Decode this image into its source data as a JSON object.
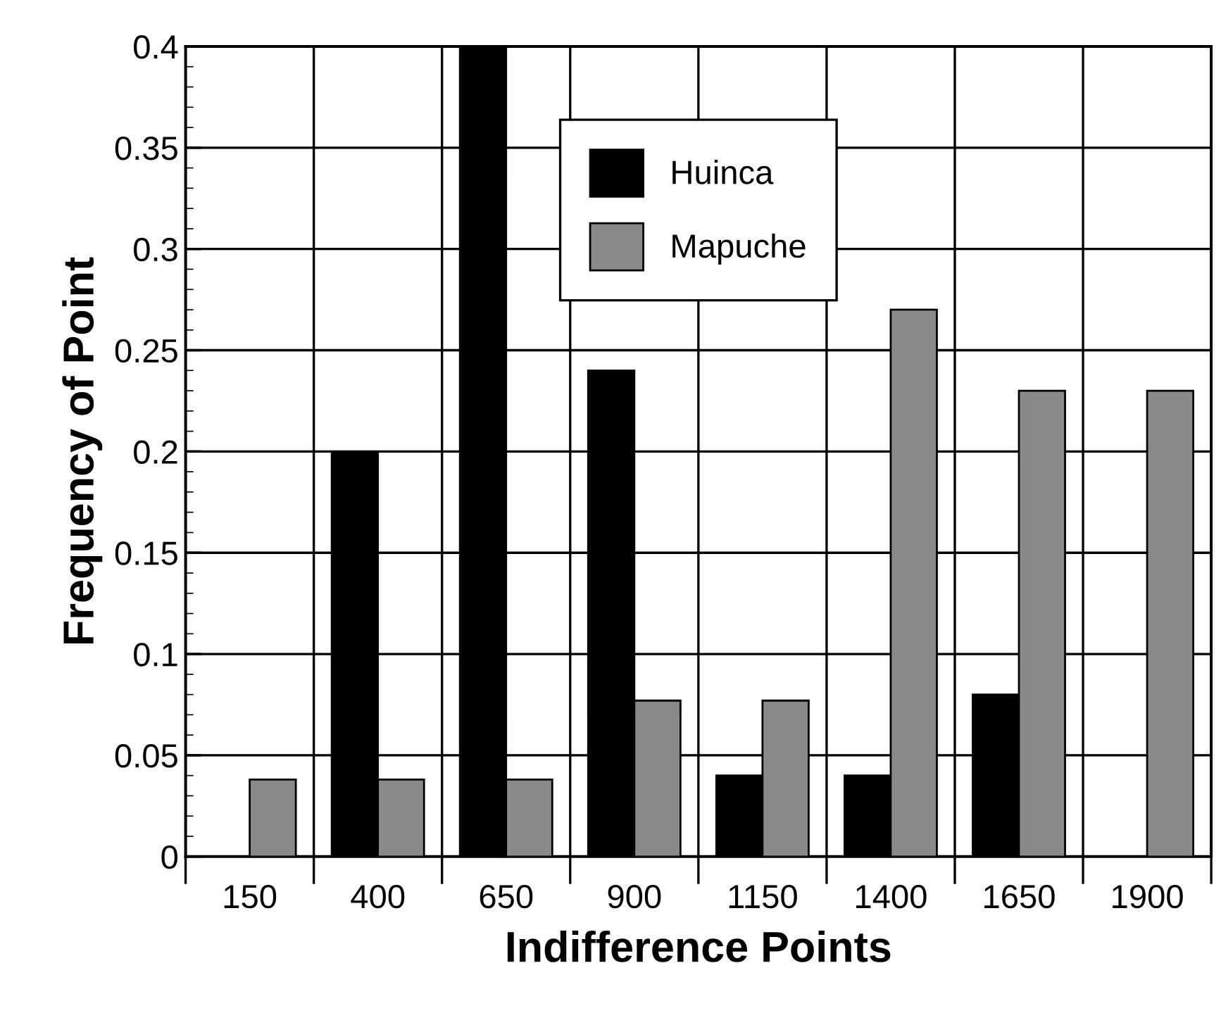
{
  "chart_data": {
    "type": "bar",
    "xlabel": "Indifference Points",
    "ylabel": "Frequency of Point",
    "categories": [
      "150",
      "400",
      "650",
      "900",
      "1150",
      "1400",
      "1650",
      "1900"
    ],
    "series": [
      {
        "name": "Huinca",
        "color": "#000000",
        "values": [
          0,
          0.2,
          0.4,
          0.24,
          0.04,
          0.04,
          0.08,
          0
        ]
      },
      {
        "name": "Mapuche",
        "color": "#8a8a8a",
        "values": [
          0.038,
          0.038,
          0.038,
          0.077,
          0.077,
          0.27,
          0.23,
          0.23
        ]
      }
    ],
    "ylim": [
      0,
      0.4
    ],
    "yticks": [
      0,
      0.05,
      0.1,
      0.15,
      0.2,
      0.25,
      0.3,
      0.35,
      0.4
    ],
    "grid": true,
    "legend": "top"
  }
}
